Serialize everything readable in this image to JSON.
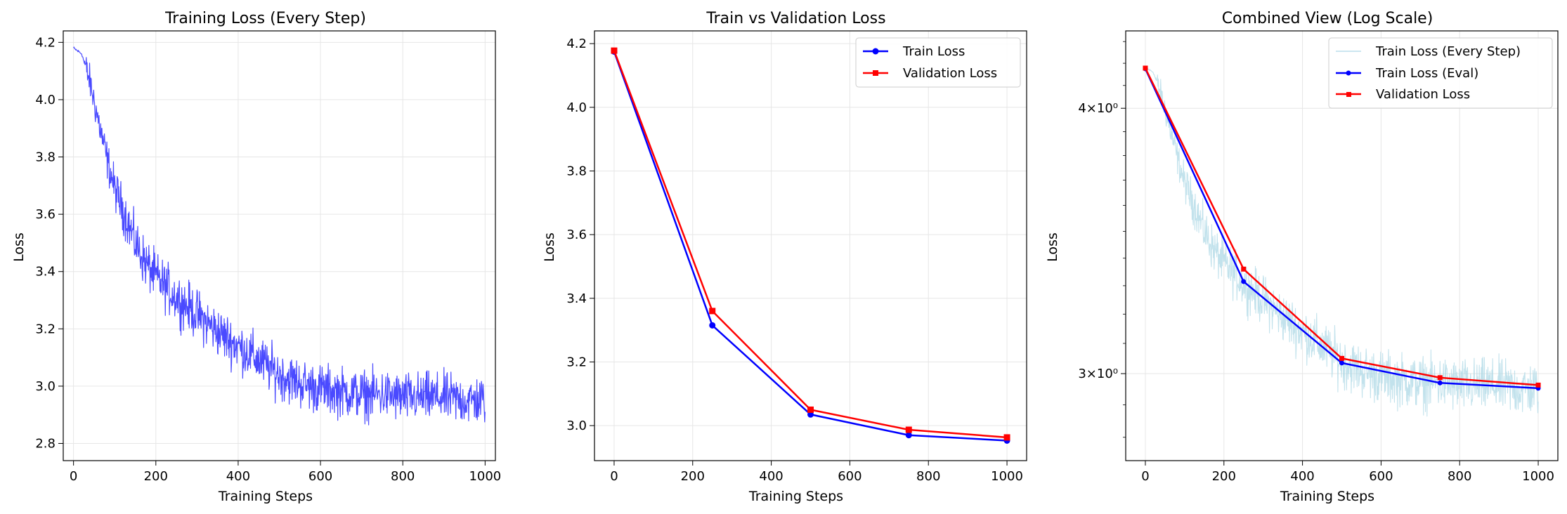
{
  "colors": {
    "every_step": "#4a4aff",
    "every_step_light": "#add8e6",
    "train": "#0000ff",
    "validation": "#ff0000",
    "grid": "#e6e6e6",
    "legend_border": "#cccccc"
  },
  "chart_data": [
    {
      "type": "line",
      "title": "Training Loss (Every Step)",
      "xlabel": "Training Steps",
      "ylabel": "Loss",
      "xlim": [
        -25,
        1025
      ],
      "ylim": [
        2.74,
        4.24
      ],
      "xticks": [
        0,
        200,
        400,
        600,
        800,
        1000
      ],
      "xtick_labels": [
        "0",
        "200",
        "400",
        "600",
        "800",
        "1000"
      ],
      "yticks": [
        2.8,
        3.0,
        3.2,
        3.4,
        3.6,
        3.8,
        4.0,
        4.2
      ],
      "ytick_labels": [
        "2.8",
        "3.0",
        "3.2",
        "3.4",
        "3.6",
        "3.8",
        "4.0",
        "4.2"
      ],
      "grid": true,
      "legend": "none",
      "series": [
        {
          "x": [
            0,
            20,
            40,
            60,
            80,
            100,
            125,
            150,
            175,
            200,
            250,
            300,
            350,
            400,
            450,
            500,
            550,
            600,
            650,
            700,
            750,
            800,
            850,
            900,
            950,
            1000
          ],
          "values": [
            4.18,
            4.16,
            4.06,
            3.93,
            3.8,
            3.69,
            3.6,
            3.5,
            3.43,
            3.38,
            3.31,
            3.25,
            3.19,
            3.14,
            3.09,
            3.04,
            3.01,
            2.99,
            2.98,
            2.97,
            2.97,
            2.96,
            2.96,
            2.96,
            2.95,
            2.95
          ],
          "noise_amplitude": 0.06
        }
      ]
    },
    {
      "type": "line",
      "title": "Train vs Validation Loss",
      "xlabel": "Training Steps",
      "ylabel": "Loss",
      "xlim": [
        -50,
        1050
      ],
      "ylim": [
        2.89,
        4.24
      ],
      "xticks": [
        0,
        200,
        400,
        600,
        800,
        1000
      ],
      "xtick_labels": [
        "0",
        "200",
        "400",
        "600",
        "800",
        "1000"
      ],
      "yticks": [
        3.0,
        3.2,
        3.4,
        3.6,
        3.8,
        4.0,
        4.2
      ],
      "ytick_labels": [
        "3.0",
        "3.2",
        "3.4",
        "3.6",
        "3.8",
        "4.0",
        "4.2"
      ],
      "grid": true,
      "legend": "top-right",
      "series": [
        {
          "name": "Train Loss",
          "marker": "circle",
          "x": [
            0,
            250,
            500,
            750,
            1000
          ],
          "values": [
            4.175,
            3.315,
            3.035,
            2.97,
            2.953
          ]
        },
        {
          "name": "Validation Loss",
          "marker": "square",
          "x": [
            0,
            250,
            500,
            750,
            1000
          ],
          "values": [
            4.178,
            3.36,
            3.05,
            2.987,
            2.963
          ]
        }
      ]
    },
    {
      "type": "line",
      "title": "Combined View (Log Scale)",
      "xlabel": "Training Steps",
      "ylabel": "Loss",
      "yscale": "log",
      "xlim": [
        -50,
        1050
      ],
      "ylim": [
        2.73,
        4.35
      ],
      "xticks": [
        0,
        200,
        400,
        600,
        800,
        1000
      ],
      "xtick_labels": [
        "0",
        "200",
        "400",
        "600",
        "800",
        "1000"
      ],
      "yticks": [
        3.0,
        4.0
      ],
      "ytick_labels": [
        "3×10⁰",
        "4×10⁰"
      ],
      "grid": true,
      "legend": "top-right",
      "series": [
        {
          "name": "Train Loss (Every Step)",
          "ref": "every_step"
        },
        {
          "name": "Train Loss (Eval)",
          "marker": "circle",
          "x": [
            0,
            250,
            500,
            750,
            1000
          ],
          "values": [
            4.175,
            3.315,
            3.035,
            2.97,
            2.953
          ]
        },
        {
          "name": "Validation Loss",
          "marker": "square",
          "x": [
            0,
            250,
            500,
            750,
            1000
          ],
          "values": [
            4.178,
            3.36,
            3.05,
            2.987,
            2.963
          ]
        }
      ]
    }
  ]
}
